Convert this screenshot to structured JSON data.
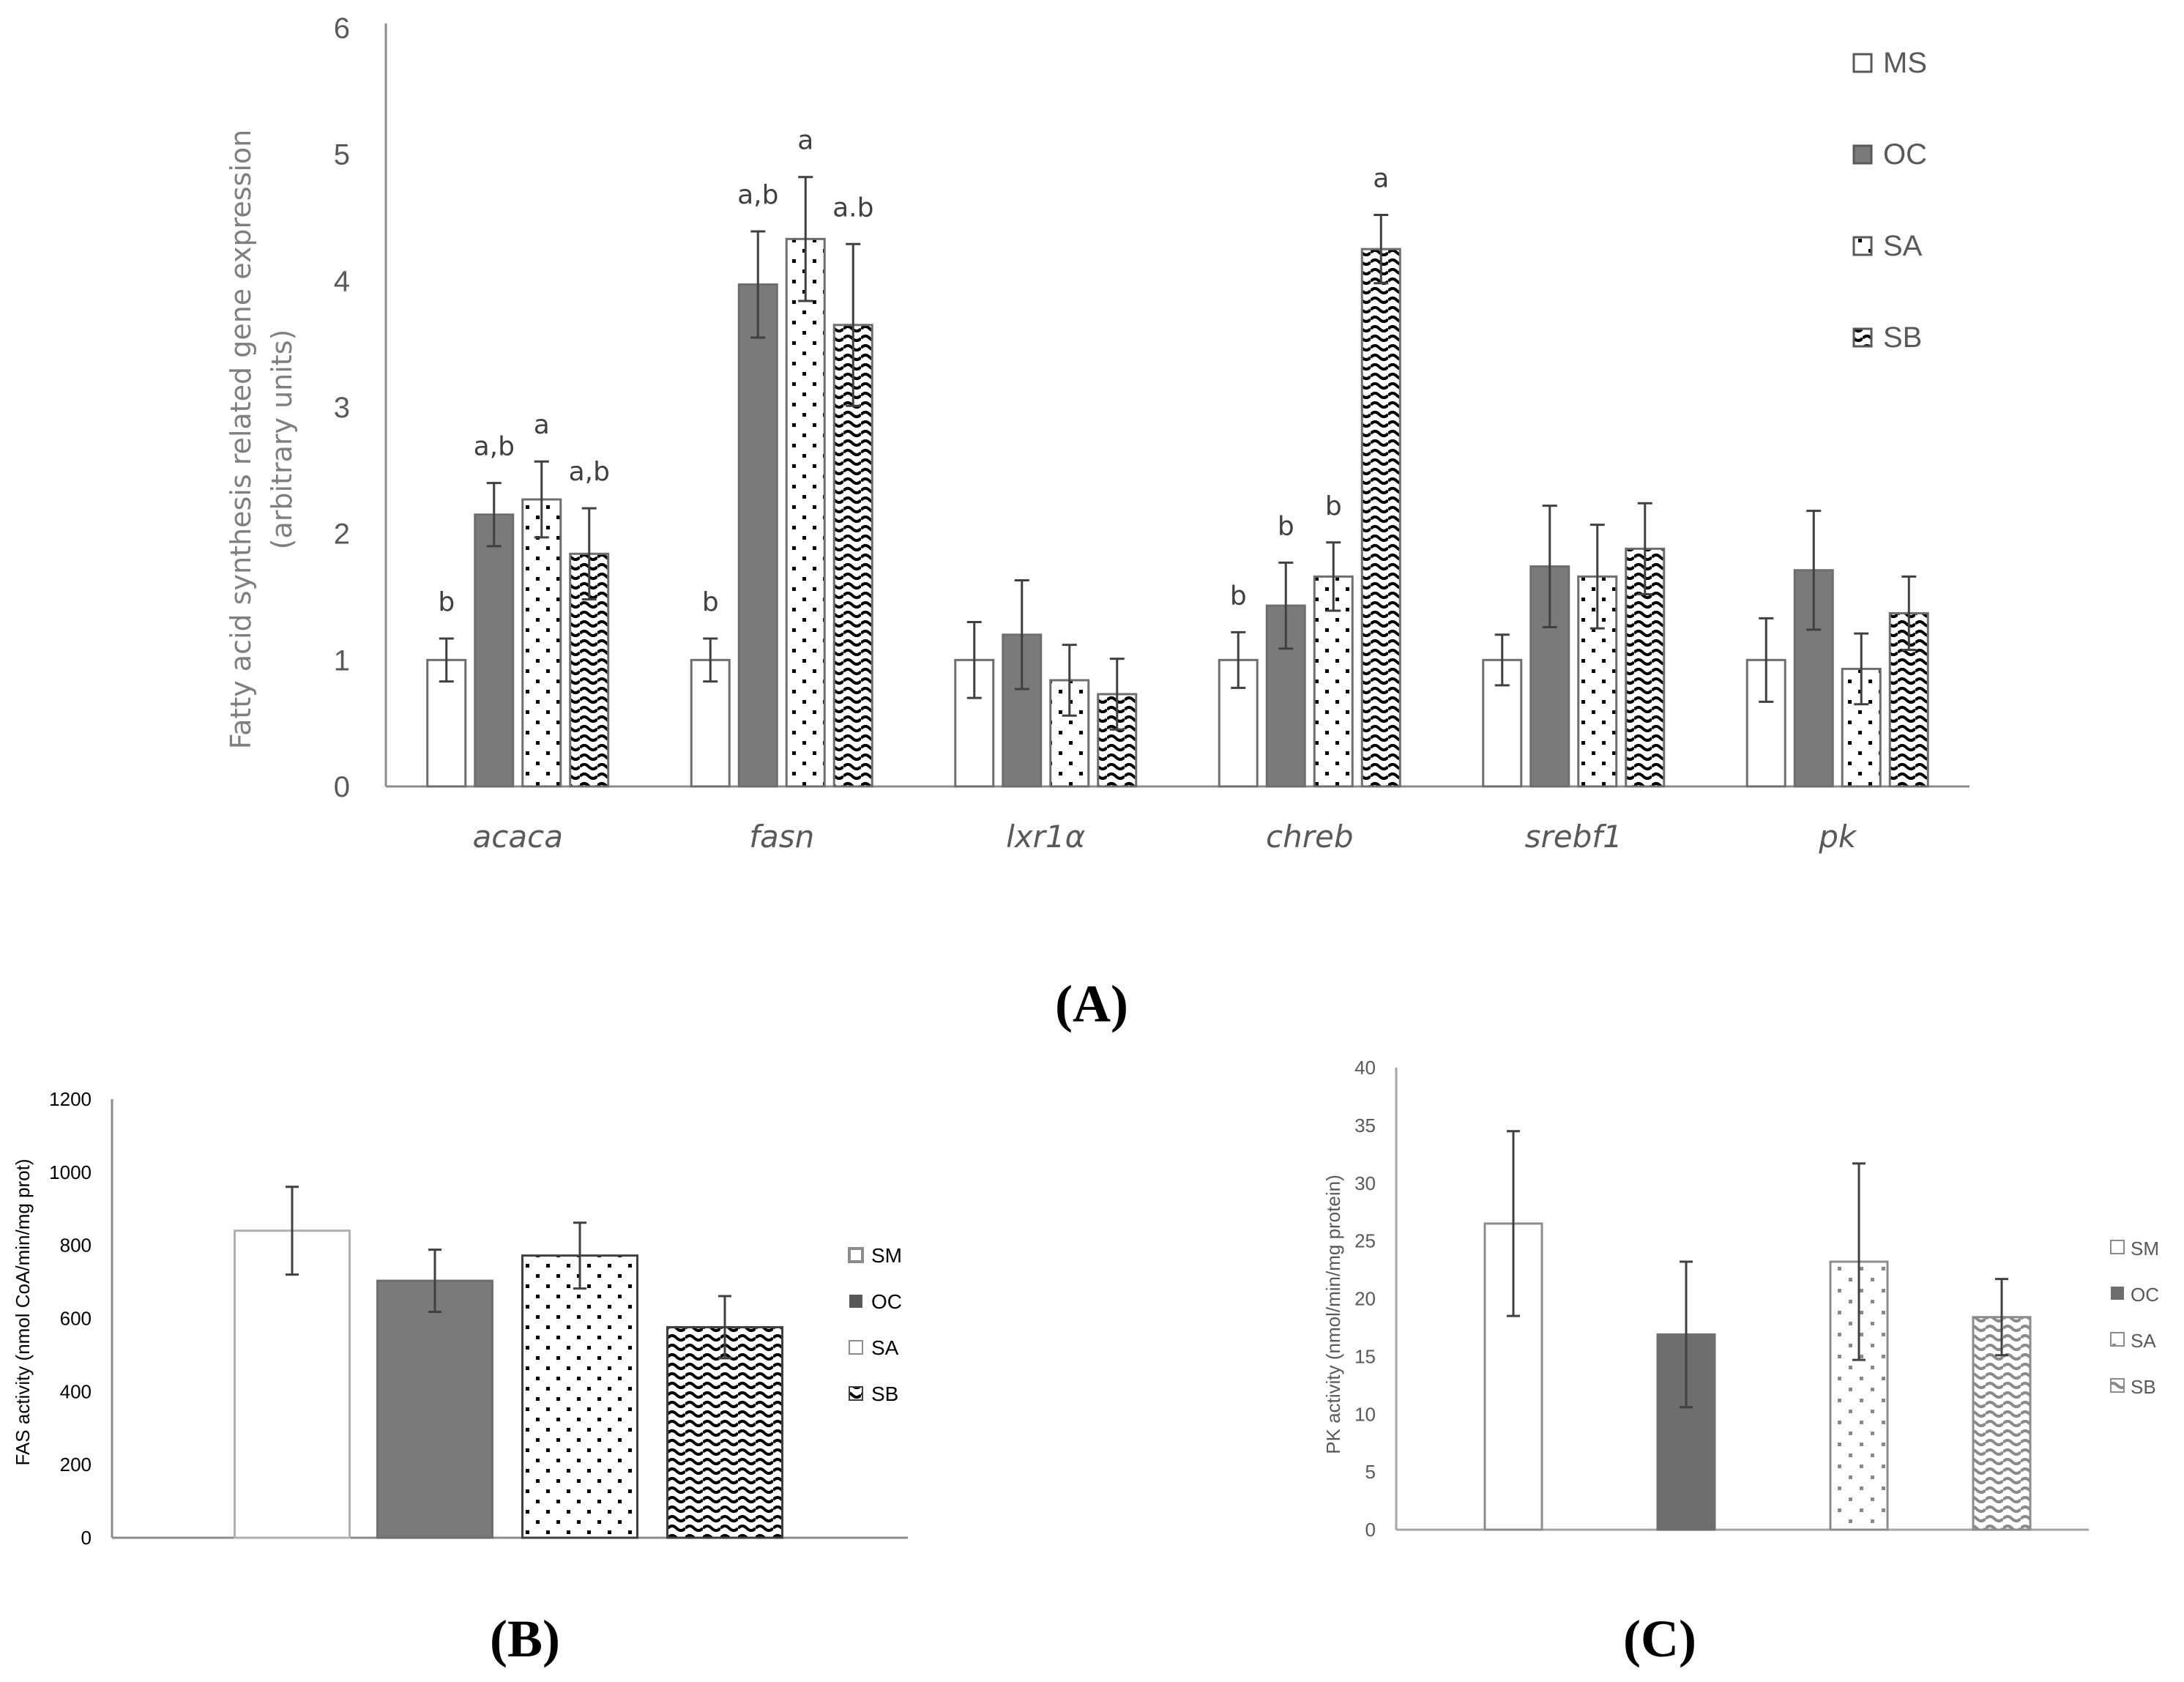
{
  "colors": {
    "axis": "#8c8c8c",
    "text": "#595959",
    "bar_outline": "#6e6e6e",
    "dark_fill": "#7a7a7a",
    "error_bar": "#404040"
  },
  "panel_labels": [
    "(A)",
    "(B)",
    "(C)"
  ],
  "chart_data": [
    {
      "id": "A",
      "type": "bar",
      "title": "",
      "ylabel_line1": "Fatty acid synthesis related gene expression",
      "ylabel_line2": "(arbitrary units)",
      "xlabel": "",
      "ylim": [
        0,
        6
      ],
      "yticks": [
        0,
        1,
        2,
        3,
        4,
        5,
        6
      ],
      "categories": [
        "acaca",
        "fasn",
        "lxr1α",
        "chreb",
        "srebf1",
        "pk"
      ],
      "legend_position": "top-right",
      "series": [
        {
          "name": "MS",
          "pattern": "empty",
          "values": [
            1.0,
            1.0,
            1.0,
            1.0,
            1.0,
            1.0
          ],
          "errors": [
            0.17,
            0.17,
            0.3,
            0.22,
            0.2,
            0.33
          ],
          "labels": [
            "b",
            "b",
            "",
            "b",
            "",
            ""
          ]
        },
        {
          "name": "OC",
          "pattern": "solid",
          "values": [
            2.15,
            3.97,
            1.2,
            1.43,
            1.74,
            1.71
          ],
          "errors": [
            0.25,
            0.42,
            0.43,
            0.34,
            0.48,
            0.47
          ],
          "labels": [
            "a,b",
            "a,b",
            "",
            "b",
            "",
            ""
          ]
        },
        {
          "name": "SA",
          "pattern": "dots",
          "values": [
            2.27,
            4.33,
            0.84,
            1.66,
            1.66,
            0.93
          ],
          "errors": [
            0.3,
            0.49,
            0.28,
            0.27,
            0.41,
            0.28
          ],
          "labels": [
            "a",
            "a",
            "",
            "b",
            "",
            ""
          ]
        },
        {
          "name": "SB",
          "pattern": "waves",
          "values": [
            1.84,
            3.65,
            0.73,
            4.25,
            1.88,
            1.37
          ],
          "errors": [
            0.36,
            0.64,
            0.28,
            0.27,
            0.36,
            0.29
          ],
          "labels": [
            "a,b",
            "a.b",
            "",
            "a",
            "",
            ""
          ]
        }
      ]
    },
    {
      "id": "B",
      "type": "bar",
      "title": "",
      "ylabel": "FAS activity (nmol CoA/min/mg prot)",
      "xlabel": "",
      "ylim": [
        0,
        1200
      ],
      "yticks": [
        0,
        200,
        400,
        600,
        800,
        1000,
        1200
      ],
      "legend_position": "right",
      "series": [
        {
          "name": "SM",
          "pattern": "empty",
          "value": 840,
          "error": 120
        },
        {
          "name": "OC",
          "pattern": "solid",
          "value": 703,
          "error": 85
        },
        {
          "name": "SA",
          "pattern": "dots",
          "value": 772,
          "error": 90
        },
        {
          "name": "SB",
          "pattern": "waves",
          "value": 576,
          "error": 85
        }
      ]
    },
    {
      "id": "C",
      "type": "bar",
      "title": "",
      "ylabel": "PK activity (nmol/min/mg protein)",
      "xlabel": "",
      "ylim": [
        0,
        40
      ],
      "yticks": [
        0,
        5,
        10,
        15,
        20,
        25,
        30,
        35,
        40
      ],
      "legend_position": "right",
      "series": [
        {
          "name": "SM",
          "pattern": "empty",
          "value": 26.5,
          "error": 8.0
        },
        {
          "name": "OC",
          "pattern": "solid",
          "value": 16.9,
          "error": 6.3
        },
        {
          "name": "SA",
          "pattern": "dots",
          "value": 23.2,
          "error": 8.5
        },
        {
          "name": "SB",
          "pattern": "waves",
          "value": 18.4,
          "error": 3.3
        }
      ]
    }
  ]
}
